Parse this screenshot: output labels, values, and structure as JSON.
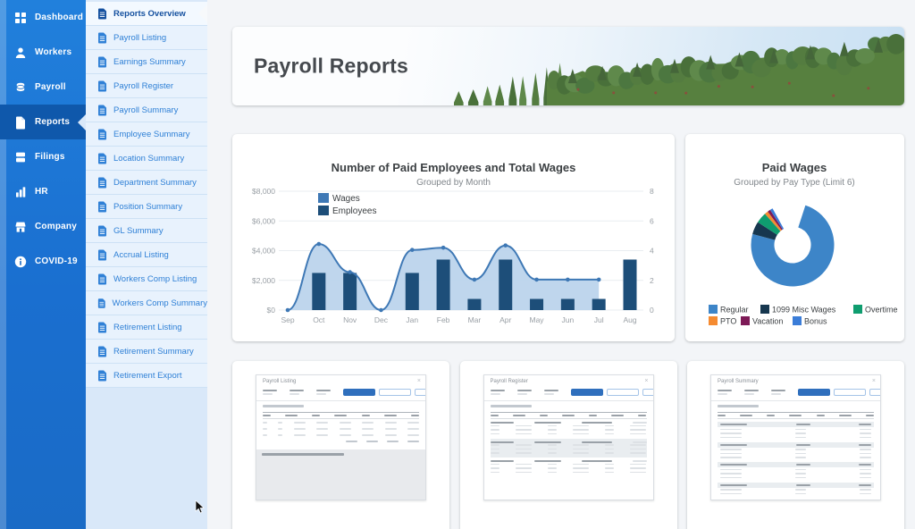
{
  "header": {
    "title": "Payroll Reports"
  },
  "sidebar": {
    "items": [
      {
        "label": "Dashboard",
        "icon": "dashboard-icon",
        "selected": false
      },
      {
        "label": "Workers",
        "icon": "workers-icon",
        "selected": false
      },
      {
        "label": "Payroll",
        "icon": "payroll-icon",
        "selected": false
      },
      {
        "label": "Reports",
        "icon": "reports-icon",
        "selected": true
      },
      {
        "label": "Filings",
        "icon": "filings-icon",
        "selected": false
      },
      {
        "label": "HR",
        "icon": "hr-icon",
        "selected": false
      },
      {
        "label": "Company",
        "icon": "company-icon",
        "selected": false
      },
      {
        "label": "COVID-19",
        "icon": "covid-icon",
        "selected": false
      }
    ]
  },
  "reports_menu": {
    "selected": "Reports Overview",
    "items": [
      "Reports Overview",
      "Payroll Listing",
      "Earnings Summary",
      "Payroll Register",
      "Payroll Summary",
      "Employee Summary",
      "Location Summary",
      "Department Summary",
      "Position Summary",
      "GL Summary",
      "Accrual Listing",
      "Workers Comp Listing",
      "Workers Comp Summary",
      "Retirement Listing",
      "Retirement Summary",
      "Retirement Export"
    ]
  },
  "chart_data": [
    {
      "type": "area-bar-combo",
      "title": "Number of Paid Employees and Total Wages",
      "subtitle": "Grouped by Month",
      "categories": [
        "Sep",
        "Oct",
        "Nov",
        "Dec",
        "Jan",
        "Feb",
        "Mar",
        "Apr",
        "May",
        "Jun",
        "Jul",
        "Aug"
      ],
      "series": [
        {
          "name": "Wages",
          "type": "area",
          "axis": "left",
          "color": "#3e78b5",
          "fill": "#bcd4ec",
          "values": [
            0,
            4450,
            2550,
            0,
            4050,
            4200,
            2050,
            4350,
            2050,
            2050,
            2050,
            null
          ]
        },
        {
          "name": "Employees",
          "type": "bar",
          "axis": "right",
          "color": "#1d4e79",
          "values": [
            0,
            2.5,
            2.5,
            0,
            2.5,
            3.4,
            0.75,
            3.4,
            0.75,
            0.75,
            0.75,
            3.4
          ]
        }
      ],
      "left_axis": {
        "ticks": [
          "$8,000",
          "$6,000",
          "$4,000",
          "$2,000",
          "$0"
        ],
        "min": 0,
        "max": 8000
      },
      "right_axis": {
        "ticks": [
          "8",
          "6",
          "4",
          "2",
          "0"
        ],
        "min": 0,
        "max": 8
      },
      "grid": true,
      "legend_position": "inside-top-left"
    },
    {
      "type": "donut",
      "title": "Paid Wages",
      "subtitle": "Grouped by Pay Type (Limit 6)",
      "start_angle_deg": 18,
      "segments": [
        {
          "label": "Regular",
          "percent": 74.2,
          "color": "#3d85c8"
        },
        {
          "label": "1099 Misc Wages",
          "percent": 5.0,
          "color": "#17374f"
        },
        {
          "label": "Overtime",
          "percent": 4.2,
          "color": "#0f9d6f"
        },
        {
          "label": "PTO",
          "percent": 1.4,
          "color": "#f58b31"
        },
        {
          "label": "Vacation",
          "percent": 1.1,
          "color": "#7d1a57"
        },
        {
          "label": "Bonus",
          "percent": 1.1,
          "color": "#3b7dd8"
        }
      ],
      "legend_position": "bottom"
    }
  ],
  "thumbnails": [
    {
      "title": "Payroll Listing"
    },
    {
      "title": "Payroll Register"
    },
    {
      "title": "Payroll Summary"
    }
  ],
  "colors": {
    "sidebar_blue": "#1d73d2",
    "sidebar_selected": "#0f58ab",
    "submenu_bg": "#d9e8f9",
    "submenu_text": "#2f80d6",
    "content_bg": "#f3f5f8",
    "accent_button": "#2f6fbd"
  }
}
